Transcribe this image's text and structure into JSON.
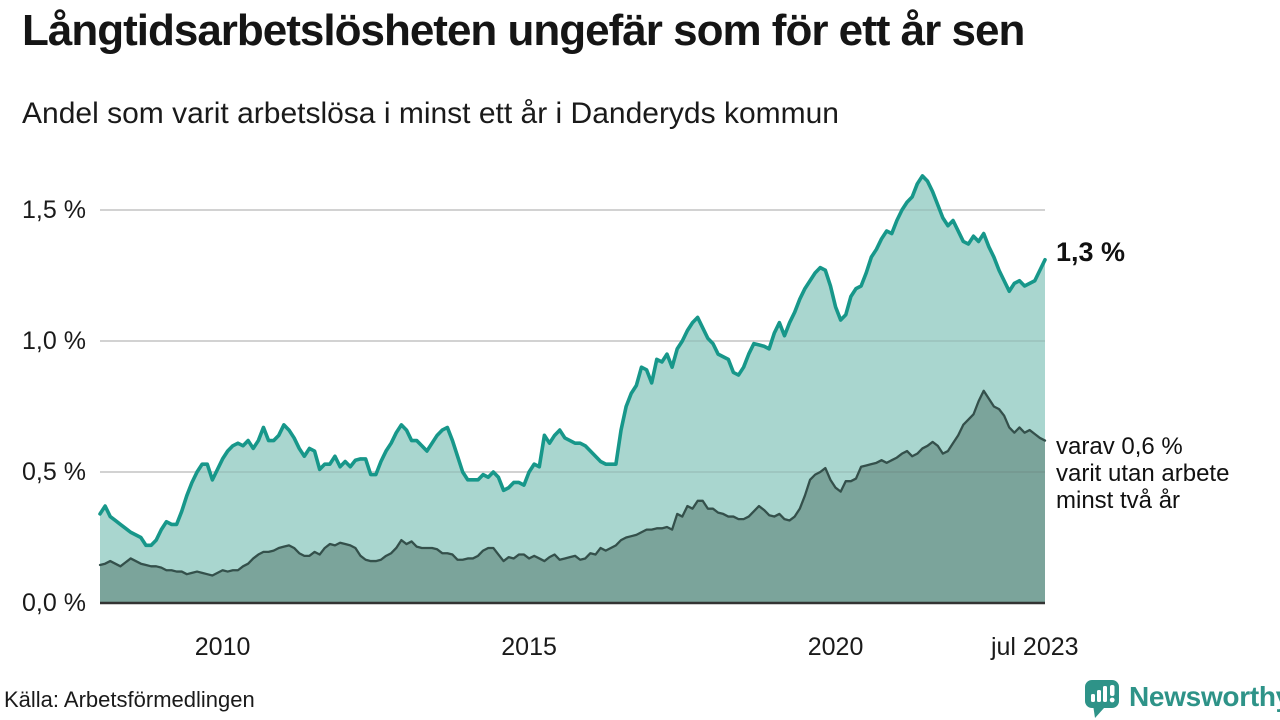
{
  "header": {
    "title": "Långtidsarbetslösheten ungefär som för ett år sen",
    "subtitle": "Andel som varit arbetslösa i minst ett år i Danderyds kommun"
  },
  "annotations": {
    "latest_value": "1,3 %",
    "secondary_lines": [
      "varav 0,6 %",
      "varit utan arbete",
      "minst två år"
    ]
  },
  "source_label": "Källa: Arbetsförmedlingen",
  "branding": {
    "logo_text": "Newsworthy",
    "logo_icon": "newsworthy-bars-icon",
    "brand_color": "#2e9388"
  },
  "colors": {
    "line_one_year": "#17978a",
    "fill_one_year": "#a9d6cf",
    "line_two_years": "#34504b",
    "fill_two_years": "#7ba49b",
    "gridline": "#d9d9d9",
    "axis": "#333333",
    "text": "#1a1a1a"
  },
  "chart_data": {
    "type": "area",
    "title": "Långtidsarbetslösheten ungefär som för ett år sen",
    "subtitle": "Andel som varit arbetslösa i minst ett år i Danderyds kommun",
    "unit": "%",
    "x_unit": "month",
    "x_start": "2008",
    "x_end": "jul 2023",
    "grid": true,
    "legend": "none",
    "ylim": [
      0,
      1.7
    ],
    "y_ticks": [
      {
        "value": 0.0,
        "label": "0,0 %"
      },
      {
        "value": 0.5,
        "label": "0,5 %"
      },
      {
        "value": 1.0,
        "label": "1,0 %"
      },
      {
        "value": 1.5,
        "label": "1,5 %"
      }
    ],
    "x_ticks": [
      {
        "label": "2010",
        "month_index": 24
      },
      {
        "label": "2015",
        "month_index": 84
      },
      {
        "label": "2020",
        "month_index": 144
      },
      {
        "label": "jul 2023",
        "month_index": 183
      }
    ],
    "latest_point": {
      "series": "minst ett år",
      "label": "1,3 %",
      "value": 1.3
    },
    "series": [
      {
        "name": "Andel arbetslösa minst ett år",
        "line_color": "#17978a",
        "fill_color": "#a9d6cf",
        "values": [
          0.34,
          0.37,
          0.33,
          0.315,
          0.3,
          0.285,
          0.27,
          0.26,
          0.25,
          0.22,
          0.22,
          0.24,
          0.28,
          0.31,
          0.3,
          0.3,
          0.35,
          0.41,
          0.46,
          0.5,
          0.53,
          0.53,
          0.47,
          0.51,
          0.55,
          0.58,
          0.6,
          0.61,
          0.6,
          0.62,
          0.59,
          0.62,
          0.67,
          0.62,
          0.62,
          0.64,
          0.68,
          0.66,
          0.63,
          0.59,
          0.56,
          0.59,
          0.58,
          0.51,
          0.53,
          0.53,
          0.56,
          0.52,
          0.54,
          0.52,
          0.545,
          0.55,
          0.55,
          0.49,
          0.49,
          0.54,
          0.58,
          0.61,
          0.65,
          0.68,
          0.66,
          0.62,
          0.62,
          0.6,
          0.58,
          0.61,
          0.64,
          0.66,
          0.67,
          0.62,
          0.56,
          0.5,
          0.47,
          0.47,
          0.47,
          0.49,
          0.48,
          0.5,
          0.48,
          0.43,
          0.44,
          0.46,
          0.46,
          0.45,
          0.5,
          0.53,
          0.52,
          0.64,
          0.61,
          0.64,
          0.66,
          0.63,
          0.62,
          0.61,
          0.61,
          0.6,
          0.58,
          0.56,
          0.54,
          0.53,
          0.53,
          0.53,
          0.66,
          0.75,
          0.8,
          0.83,
          0.9,
          0.89,
          0.84,
          0.93,
          0.92,
          0.95,
          0.9,
          0.97,
          1.0,
          1.04,
          1.07,
          1.09,
          1.05,
          1.01,
          0.99,
          0.95,
          0.94,
          0.93,
          0.88,
          0.87,
          0.9,
          0.95,
          0.99,
          0.985,
          0.98,
          0.97,
          1.03,
          1.07,
          1.02,
          1.07,
          1.11,
          1.16,
          1.2,
          1.23,
          1.26,
          1.28,
          1.27,
          1.21,
          1.13,
          1.08,
          1.1,
          1.17,
          1.2,
          1.21,
          1.26,
          1.32,
          1.35,
          1.39,
          1.42,
          1.41,
          1.46,
          1.5,
          1.53,
          1.55,
          1.6,
          1.63,
          1.61,
          1.57,
          1.52,
          1.47,
          1.44,
          1.46,
          1.42,
          1.38,
          1.37,
          1.4,
          1.38,
          1.41,
          1.36,
          1.32,
          1.27,
          1.23,
          1.19,
          1.22,
          1.23,
          1.21,
          1.22,
          1.23,
          1.27,
          1.31
        ]
      },
      {
        "name": "varav arbetslösa minst två år",
        "line_color": "#34504b",
        "fill_color": "#7ba49b",
        "values": [
          0.145,
          0.15,
          0.16,
          0.15,
          0.14,
          0.155,
          0.17,
          0.16,
          0.15,
          0.145,
          0.14,
          0.14,
          0.135,
          0.125,
          0.125,
          0.12,
          0.12,
          0.11,
          0.115,
          0.12,
          0.115,
          0.11,
          0.105,
          0.115,
          0.125,
          0.12,
          0.125,
          0.125,
          0.14,
          0.15,
          0.17,
          0.185,
          0.195,
          0.195,
          0.2,
          0.21,
          0.215,
          0.22,
          0.21,
          0.19,
          0.18,
          0.18,
          0.195,
          0.185,
          0.21,
          0.225,
          0.22,
          0.23,
          0.225,
          0.22,
          0.21,
          0.18,
          0.165,
          0.16,
          0.16,
          0.165,
          0.18,
          0.19,
          0.21,
          0.24,
          0.225,
          0.235,
          0.215,
          0.21,
          0.21,
          0.21,
          0.205,
          0.19,
          0.19,
          0.185,
          0.165,
          0.165,
          0.17,
          0.17,
          0.18,
          0.2,
          0.21,
          0.21,
          0.185,
          0.16,
          0.175,
          0.17,
          0.185,
          0.185,
          0.17,
          0.18,
          0.17,
          0.16,
          0.175,
          0.185,
          0.165,
          0.17,
          0.175,
          0.18,
          0.165,
          0.17,
          0.19,
          0.185,
          0.21,
          0.2,
          0.21,
          0.22,
          0.24,
          0.25,
          0.255,
          0.26,
          0.27,
          0.28,
          0.28,
          0.285,
          0.285,
          0.29,
          0.28,
          0.34,
          0.33,
          0.37,
          0.36,
          0.39,
          0.39,
          0.36,
          0.36,
          0.345,
          0.34,
          0.33,
          0.33,
          0.32,
          0.32,
          0.33,
          0.35,
          0.37,
          0.355,
          0.335,
          0.33,
          0.34,
          0.32,
          0.315,
          0.33,
          0.36,
          0.41,
          0.47,
          0.49,
          0.5,
          0.515,
          0.47,
          0.44,
          0.425,
          0.465,
          0.465,
          0.475,
          0.52,
          0.525,
          0.53,
          0.535,
          0.545,
          0.535,
          0.545,
          0.555,
          0.57,
          0.58,
          0.56,
          0.57,
          0.59,
          0.6,
          0.615,
          0.6,
          0.57,
          0.58,
          0.61,
          0.64,
          0.68,
          0.7,
          0.72,
          0.77,
          0.81,
          0.78,
          0.75,
          0.74,
          0.715,
          0.67,
          0.65,
          0.67,
          0.65,
          0.66,
          0.645,
          0.63,
          0.62
        ]
      }
    ]
  }
}
